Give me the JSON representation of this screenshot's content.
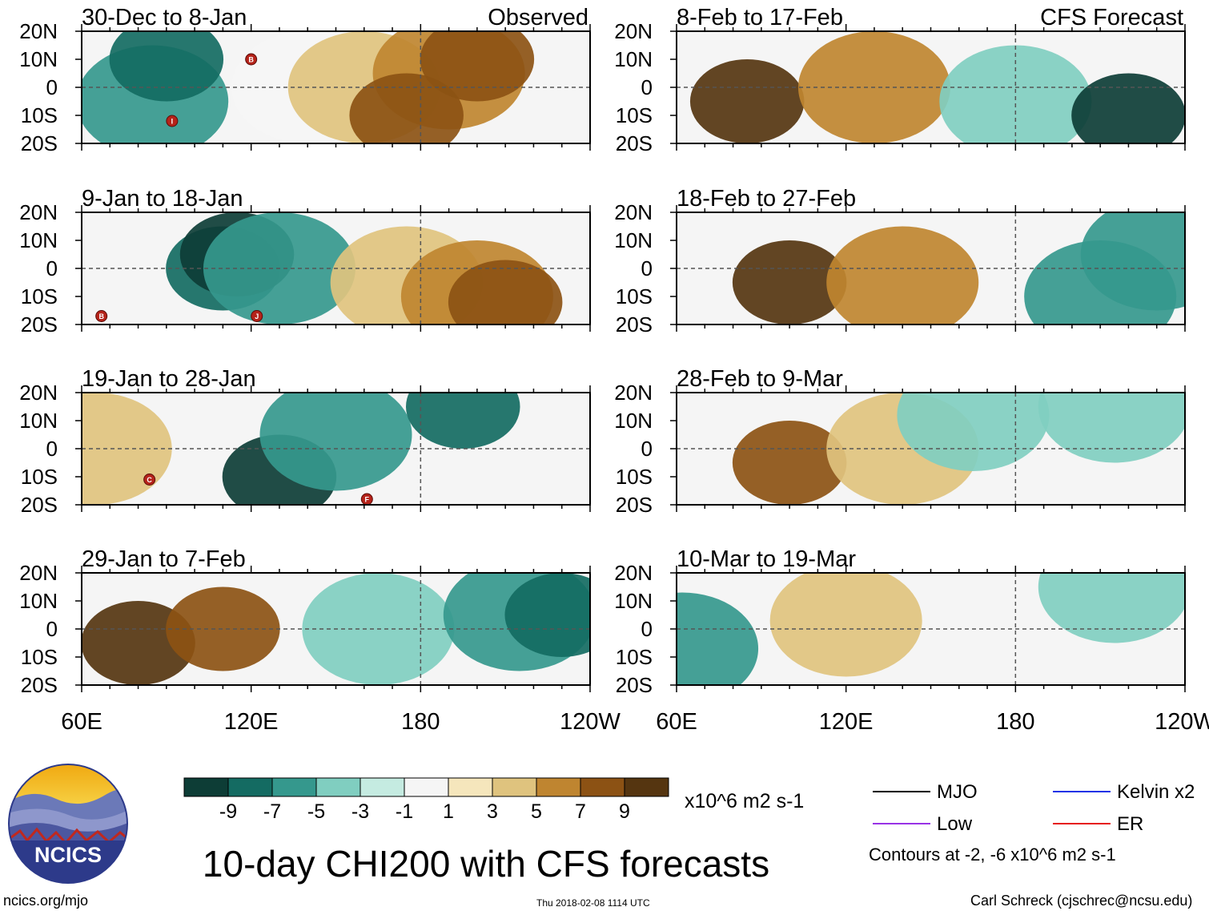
{
  "chart_data": {
    "type": "heatmap",
    "title": "10-day CHI200 with CFS forecasts",
    "units": "x10^6 m2 s-1",
    "colorbar": {
      "tick_labels": [
        "-9",
        "-7",
        "-5",
        "-3",
        "-1",
        "1",
        "3",
        "5",
        "7",
        "9"
      ],
      "bins": [
        {
          "range": "< -9",
          "color": "#0d3d36"
        },
        {
          "range": "-9 to -7",
          "color": "#146b62"
        },
        {
          "range": "-7 to -5",
          "color": "#35988d"
        },
        {
          "range": "-5 to -3",
          "color": "#80cec0"
        },
        {
          "range": "-3 to -1",
          "color": "#c5ebe1"
        },
        {
          "range": "-1 to 1",
          "color": "#f5f5f5"
        },
        {
          "range": "1 to 3",
          "color": "#f5e6bc"
        },
        {
          "range": "3 to 5",
          "color": "#dfc37e"
        },
        {
          "range": "5 to 7",
          "color": "#bf8530"
        },
        {
          "range": "7 to 9",
          "color": "#8c5214"
        },
        {
          "range": "> 9",
          "color": "#553510"
        }
      ]
    },
    "x_axis": {
      "ticks": [
        "60E",
        "120E",
        "180",
        "120W"
      ],
      "range_deg_east": [
        60,
        240
      ]
    },
    "y_axis": {
      "ticks": [
        "20N",
        "10N",
        "0",
        "10S",
        "20S"
      ],
      "range_deg": [
        -20,
        20
      ]
    },
    "column_labels": {
      "left": "Observed",
      "right": "CFS Forecast"
    },
    "panels": [
      {
        "period": "30-Dec to 8-Jan",
        "source": "Observed",
        "anomalies": [
          {
            "lon": 85,
            "lat": -5,
            "level": -5
          },
          {
            "lon": 90,
            "lat": 10,
            "level": -7
          },
          {
            "lon": 140,
            "lat": 0,
            "level": 0
          },
          {
            "lon": 160,
            "lat": 0,
            "level": 3
          },
          {
            "lon": 190,
            "lat": 5,
            "level": 5
          },
          {
            "lon": 200,
            "lat": 10,
            "level": 7
          },
          {
            "lon": 175,
            "lat": -10,
            "level": 7
          }
        ],
        "storms": [
          {
            "label": "B",
            "lon": 120,
            "lat": 10
          },
          {
            "label": "I",
            "lon": 92,
            "lat": -12
          }
        ]
      },
      {
        "period": "9-Jan to 18-Jan",
        "source": "Observed",
        "anomalies": [
          {
            "lon": 110,
            "lat": 0,
            "level": -7
          },
          {
            "lon": 115,
            "lat": 5,
            "level": -9
          },
          {
            "lon": 130,
            "lat": 0,
            "level": -5
          },
          {
            "lon": 175,
            "lat": -5,
            "level": 3
          },
          {
            "lon": 200,
            "lat": -10,
            "level": 5
          },
          {
            "lon": 210,
            "lat": -12,
            "level": 7
          }
        ],
        "storms": [
          {
            "label": "B",
            "lon": 67,
            "lat": -17
          },
          {
            "label": "J",
            "lon": 122,
            "lat": -17
          }
        ]
      },
      {
        "period": "19-Jan to 28-Jan",
        "source": "Observed",
        "anomalies": [
          {
            "lon": 65,
            "lat": 0,
            "level": 3
          },
          {
            "lon": 130,
            "lat": -10,
            "level": -9
          },
          {
            "lon": 150,
            "lat": 5,
            "level": -5
          },
          {
            "lon": 195,
            "lat": 15,
            "level": -7
          }
        ],
        "storms": [
          {
            "label": "C",
            "lon": 84,
            "lat": -11
          },
          {
            "label": "F",
            "lon": 161,
            "lat": -18
          }
        ]
      },
      {
        "period": "29-Jan to 7-Feb",
        "source": "Observed",
        "anomalies": [
          {
            "lon": 80,
            "lat": -5,
            "level": 9
          },
          {
            "lon": 110,
            "lat": 0,
            "level": 7
          },
          {
            "lon": 165,
            "lat": 0,
            "level": -3
          },
          {
            "lon": 215,
            "lat": 5,
            "level": -5
          },
          {
            "lon": 230,
            "lat": 5,
            "level": -7
          }
        ],
        "storms": []
      },
      {
        "period": "8-Feb to 17-Feb",
        "source": "CFS Forecast",
        "anomalies": [
          {
            "lon": 85,
            "lat": -5,
            "level": 9
          },
          {
            "lon": 130,
            "lat": 0,
            "level": 5
          },
          {
            "lon": 180,
            "lat": -5,
            "level": -3
          },
          {
            "lon": 220,
            "lat": -10,
            "level": -9
          }
        ],
        "storms": []
      },
      {
        "period": "18-Feb to 27-Feb",
        "source": "CFS Forecast",
        "anomalies": [
          {
            "lon": 100,
            "lat": -5,
            "level": 9
          },
          {
            "lon": 140,
            "lat": -5,
            "level": 5
          },
          {
            "lon": 210,
            "lat": -10,
            "level": -5
          },
          {
            "lon": 230,
            "lat": 5,
            "level": -5
          }
        ],
        "storms": []
      },
      {
        "period": "28-Feb to 9-Mar",
        "source": "CFS Forecast",
        "anomalies": [
          {
            "lon": 100,
            "lat": -5,
            "level": 7
          },
          {
            "lon": 140,
            "lat": 0,
            "level": 3
          },
          {
            "lon": 165,
            "lat": 12,
            "level": -3
          },
          {
            "lon": 215,
            "lat": 15,
            "level": -3
          }
        ],
        "storms": []
      },
      {
        "period": "10-Mar to 19-Mar",
        "source": "CFS Forecast",
        "anomalies": [
          {
            "lon": 62,
            "lat": -7,
            "level": -5
          },
          {
            "lon": 120,
            "lat": 3,
            "level": 3
          },
          {
            "lon": 215,
            "lat": 15,
            "level": -3
          }
        ],
        "storms": []
      }
    ],
    "contour_legend": [
      {
        "name": "MJO",
        "color": "#000000"
      },
      {
        "name": "Kelvin x2",
        "color": "#1a33e6"
      },
      {
        "name": "Low",
        "color": "#9933e6"
      },
      {
        "name": "ER",
        "color": "#e61a1a"
      }
    ],
    "contour_note": "Contours at -2, -6 x10^6 m2 s-1"
  },
  "footer": {
    "logo_text": "NCICS",
    "site": "ncics.org/mjo",
    "timestamp": "Thu 2018-02-08 1114 UTC",
    "author": "Carl Schreck (cjschrec@ncsu.edu)"
  }
}
